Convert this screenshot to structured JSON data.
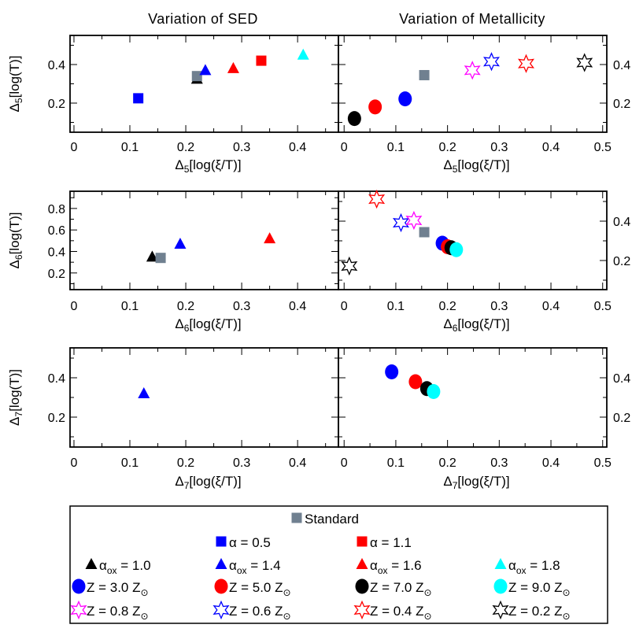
{
  "chart_data": {
    "type": "scatter",
    "titles": [
      "Variation of SED",
      "Variation of Metallicity"
    ],
    "series": [
      {
        "id": "std",
        "label": "Standard",
        "marker": "square",
        "color": "#708090"
      },
      {
        "id": "a05",
        "label": "α = 0.5",
        "marker": "square",
        "color": "#0000ff"
      },
      {
        "id": "a11",
        "label": "α = 1.1",
        "marker": "square",
        "color": "#ff0000"
      },
      {
        "id": "ox10",
        "label": "α_{ox} = 1.0",
        "marker": "triangle",
        "color": "#000000"
      },
      {
        "id": "ox14",
        "label": "α_{ox} = 1.4",
        "marker": "triangle",
        "color": "#0000ff"
      },
      {
        "id": "ox16",
        "label": "α_{ox} = 1.6",
        "marker": "triangle",
        "color": "#ff0000"
      },
      {
        "id": "ox18",
        "label": "α_{ox} = 1.8",
        "marker": "triangle",
        "color": "#00ffff"
      },
      {
        "id": "z30",
        "label": "Z = 3.0 Z_{⊙}",
        "marker": "circle",
        "color": "#0000ff"
      },
      {
        "id": "z50",
        "label": "Z = 5.0 Z_{⊙}",
        "marker": "circle",
        "color": "#ff0000"
      },
      {
        "id": "z70",
        "label": "Z = 7.0 Z_{⊙}",
        "marker": "circle",
        "color": "#000000"
      },
      {
        "id": "z90",
        "label": "Z = 9.0 Z_{⊙}",
        "marker": "circle",
        "color": "#00ffff"
      },
      {
        "id": "z08",
        "label": "Z = 0.8 Z_{⊙}",
        "marker": "star",
        "color": "#ff00ff"
      },
      {
        "id": "z06",
        "label": "Z = 0.6 Z_{⊙}",
        "marker": "star",
        "color": "#0000ff"
      },
      {
        "id": "z04",
        "label": "Z = 0.4 Z_{⊙}",
        "marker": "star",
        "color": "#ff0000"
      },
      {
        "id": "z02",
        "label": "Z = 0.2 Z_{⊙}",
        "marker": "star",
        "color": "#000000"
      }
    ],
    "panels": [
      {
        "row": 0,
        "col": 0,
        "xlabel": "Δ5[log(ξ/T)]",
        "ylabel": "Δ5[log(T)]",
        "xlim": [
          -0.007,
          0.473
        ],
        "ylim": [
          0.049,
          0.551
        ],
        "xticks": [
          "0",
          "0.1",
          "0.2",
          "0.3",
          "0.4"
        ],
        "yticks": [
          "0.2",
          "0.4"
        ],
        "yaxis": "left",
        "points": [
          {
            "s": "a05",
            "x": 0.115,
            "y": 0.225
          },
          {
            "s": "ox10",
            "x": 0.22,
            "y": 0.325
          },
          {
            "s": "std",
            "x": 0.22,
            "y": 0.34
          },
          {
            "s": "ox14",
            "x": 0.235,
            "y": 0.37
          },
          {
            "s": "ox16",
            "x": 0.285,
            "y": 0.38
          },
          {
            "s": "a11",
            "x": 0.335,
            "y": 0.42
          },
          {
            "s": "ox18",
            "x": 0.41,
            "y": 0.45
          }
        ]
      },
      {
        "row": 0,
        "col": 1,
        "xlabel": "Δ5[log(ξ/T)]",
        "xlim": [
          -0.011,
          0.508
        ],
        "ylim": [
          0.049,
          0.551
        ],
        "xticks": [
          "0",
          "0.1",
          "0.2",
          "0.3",
          "0.4",
          "0.5"
        ],
        "yticks": [
          "0.2",
          "0.4"
        ],
        "yaxis": "right",
        "points": [
          {
            "s": "z70",
            "x": 0.02,
            "y": 0.12
          },
          {
            "s": "z50",
            "x": 0.06,
            "y": 0.18
          },
          {
            "s": "z30",
            "x": 0.118,
            "y": 0.222
          },
          {
            "s": "std",
            "x": 0.155,
            "y": 0.345
          },
          {
            "s": "z08",
            "x": 0.248,
            "y": 0.37
          },
          {
            "s": "z06",
            "x": 0.285,
            "y": 0.415
          },
          {
            "s": "z04",
            "x": 0.352,
            "y": 0.405
          },
          {
            "s": "z02",
            "x": 0.465,
            "y": 0.41
          }
        ]
      },
      {
        "row": 1,
        "col": 0,
        "xlabel": "Δ6[log(ξ/T)]",
        "ylabel": "Δ6[log(T)]",
        "xlim": [
          -0.007,
          0.473
        ],
        "ylim": [
          0.045,
          0.96
        ],
        "xticks": [
          "0",
          "0.1",
          "0.2",
          "0.3",
          "0.4"
        ],
        "yticks": [
          "0.2",
          "0.4",
          "0.6",
          "0.8"
        ],
        "yaxis": "left",
        "points": [
          {
            "s": "ox10",
            "x": 0.14,
            "y": 0.35
          },
          {
            "s": "std",
            "x": 0.155,
            "y": 0.34
          },
          {
            "s": "ox14",
            "x": 0.19,
            "y": 0.47
          },
          {
            "s": "ox16",
            "x": 0.35,
            "y": 0.52
          }
        ]
      },
      {
        "row": 1,
        "col": 1,
        "xlabel": "Δ6[log(ξ/T)]",
        "xlim": [
          -0.011,
          0.508
        ],
        "ylim": [
          0.052,
          0.552
        ],
        "xticks": [
          "0",
          "0.1",
          "0.2",
          "0.3",
          "0.4",
          "0.5"
        ],
        "yticks": [
          "0.2",
          "0.4"
        ],
        "yaxis": "right",
        "points": [
          {
            "s": "z04",
            "x": 0.063,
            "y": 0.512
          },
          {
            "s": "z06",
            "x": 0.11,
            "y": 0.392
          },
          {
            "s": "z08",
            "x": 0.135,
            "y": 0.404
          },
          {
            "s": "std",
            "x": 0.155,
            "y": 0.344
          },
          {
            "s": "z30",
            "x": 0.19,
            "y": 0.288
          },
          {
            "s": "z50",
            "x": 0.2,
            "y": 0.27
          },
          {
            "s": "z70",
            "x": 0.207,
            "y": 0.265
          },
          {
            "s": "z90",
            "x": 0.217,
            "y": 0.255
          },
          {
            "s": "z02",
            "x": 0.01,
            "y": 0.172
          }
        ]
      },
      {
        "row": 2,
        "col": 0,
        "xlabel": "Δ7[log(ξ/T)]",
        "ylabel": "Δ7[log(T)]",
        "xlim": [
          -0.007,
          0.473
        ],
        "ylim": [
          0.048,
          0.552
        ],
        "xticks": [
          "0",
          "0.1",
          "0.2",
          "0.3",
          "0.4"
        ],
        "yticks": [
          "0.2",
          "0.4"
        ],
        "yaxis": "left",
        "points": [
          {
            "s": "ox14",
            "x": 0.125,
            "y": 0.32
          }
        ]
      },
      {
        "row": 2,
        "col": 1,
        "xlabel": "Δ7[log(ξ/T)]",
        "xlim": [
          -0.011,
          0.508
        ],
        "ylim": [
          0.048,
          0.552
        ],
        "xticks": [
          "0",
          "0.1",
          "0.2",
          "0.3",
          "0.4",
          "0.5"
        ],
        "yticks": [
          "0.2",
          "0.4"
        ],
        "yaxis": "right",
        "points": [
          {
            "s": "z30",
            "x": 0.092,
            "y": 0.43
          },
          {
            "s": "z50",
            "x": 0.138,
            "y": 0.38
          },
          {
            "s": "z70",
            "x": 0.16,
            "y": 0.345
          },
          {
            "s": "z90",
            "x": 0.173,
            "y": 0.33
          }
        ]
      }
    ],
    "legend": {
      "placement": "bottom",
      "rows": [
        [
          "std"
        ],
        [
          "a05",
          "a11"
        ],
        [
          "ox10",
          "ox14",
          "ox16",
          "ox18"
        ],
        [
          "z30",
          "z50",
          "z70",
          "z90"
        ],
        [
          "z08",
          "z06",
          "z04",
          "z02"
        ]
      ]
    }
  }
}
